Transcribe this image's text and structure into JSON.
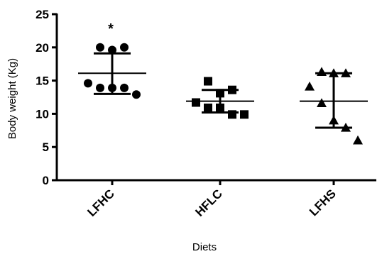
{
  "chart_data": {
    "type": "scatter",
    "xlabel": "Diets",
    "ylabel": "Body weight (Kg)",
    "ylim": [
      0,
      25
    ],
    "yticks": [
      0,
      5,
      10,
      15,
      20,
      25
    ],
    "categories": [
      "LFHC",
      "HFLC",
      "LFHS"
    ],
    "grid": false,
    "legend": "none",
    "groups": [
      {
        "category": "LFHC",
        "marker": "circle",
        "mean": 16.1,
        "upper": 19.1,
        "lower": 13.0,
        "points": [
          20.0,
          20.0,
          19.6,
          14.6,
          13.9,
          13.9,
          13.9,
          12.9
        ],
        "annotation": "*"
      },
      {
        "category": "HFLC",
        "marker": "square",
        "mean": 11.9,
        "upper": 13.6,
        "lower": 10.2,
        "points": [
          14.9,
          13.6,
          13.1,
          11.7,
          10.9,
          10.9,
          9.9,
          9.9
        ]
      },
      {
        "category": "LFHS",
        "marker": "triangle",
        "mean": 11.9,
        "upper": 16.1,
        "lower": 7.9,
        "points": [
          16.3,
          16.1,
          16.1,
          14.1,
          11.6,
          9.0,
          7.9,
          6.0
        ]
      }
    ]
  }
}
